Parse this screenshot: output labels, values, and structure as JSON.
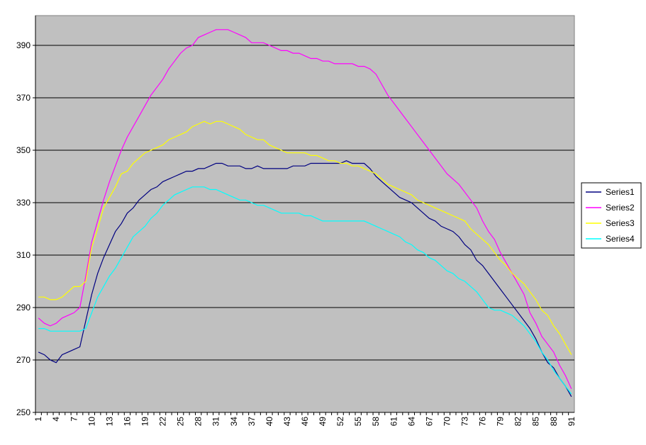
{
  "chart_data": {
    "type": "line",
    "categories": [
      1,
      null,
      null,
      4,
      null,
      null,
      7,
      null,
      null,
      10,
      null,
      null,
      13,
      null,
      null,
      16,
      null,
      null,
      19,
      null,
      null,
      22,
      null,
      null,
      25,
      null,
      null,
      28,
      null,
      null,
      31,
      null,
      null,
      34,
      null,
      null,
      37,
      null,
      null,
      40,
      null,
      null,
      43,
      null,
      null,
      46,
      null,
      null,
      49,
      null,
      null,
      52,
      null,
      null,
      55,
      null,
      null,
      58,
      null,
      null,
      61,
      null,
      null,
      64,
      null,
      null,
      67,
      null,
      null,
      70,
      null,
      null,
      73,
      null,
      null,
      76,
      null,
      null,
      79,
      null,
      null,
      82,
      null,
      null,
      85,
      null,
      null,
      88,
      null,
      null,
      91
    ],
    "ylim": [
      250,
      400
    ],
    "yticks": [
      250,
      270,
      290,
      310,
      330,
      350,
      370,
      390
    ],
    "grid": true,
    "legend": "right",
    "background": "#c0c0c0",
    "series": [
      {
        "name": "Series1",
        "color": "#000080",
        "values": [
          273,
          272,
          270,
          269,
          272,
          273,
          274,
          275,
          285,
          295,
          303,
          309,
          314,
          319,
          322,
          326,
          328,
          331,
          333,
          335,
          336,
          338,
          339,
          340,
          341,
          342,
          342,
          343,
          343,
          344,
          345,
          345,
          344,
          344,
          344,
          343,
          343,
          344,
          343,
          343,
          343,
          343,
          343,
          344,
          344,
          344,
          345,
          345,
          345,
          345,
          345,
          345,
          346,
          345,
          345,
          345,
          343,
          340,
          338,
          336,
          334,
          332,
          331,
          330,
          328,
          326,
          324,
          323,
          321,
          320,
          319,
          317,
          314,
          312,
          308,
          306,
          303,
          300,
          297,
          294,
          291,
          288,
          285,
          282,
          278,
          273,
          269,
          267,
          263,
          260,
          256
        ]
      },
      {
        "name": "Series2",
        "color": "#ff00ff",
        "values": [
          286,
          284,
          283,
          284,
          286,
          287,
          288,
          290,
          302,
          315,
          323,
          331,
          338,
          344,
          350,
          355,
          359,
          363,
          367,
          371,
          374,
          377,
          381,
          384,
          387,
          389,
          390,
          393,
          394,
          395,
          396,
          396,
          396,
          395,
          394,
          393,
          391,
          391,
          391,
          390,
          389,
          388,
          388,
          387,
          387,
          386,
          385,
          385,
          384,
          384,
          383,
          383,
          383,
          383,
          382,
          382,
          381,
          379,
          375,
          371,
          368,
          365,
          362,
          359,
          356,
          353,
          350,
          347,
          344,
          341,
          339,
          337,
          334,
          331,
          328,
          323,
          319,
          316,
          311,
          307,
          303,
          299,
          295,
          288,
          284,
          279,
          276,
          273,
          268,
          264,
          259
        ]
      },
      {
        "name": "Series3",
        "color": "#ffff00",
        "values": [
          294,
          294,
          293,
          293,
          294,
          296,
          298,
          298,
          300,
          313,
          320,
          328,
          332,
          336,
          341,
          342,
          345,
          347,
          349,
          350,
          351,
          352,
          354,
          355,
          356,
          357,
          359,
          360,
          361,
          360,
          361,
          361,
          360,
          359,
          358,
          356,
          355,
          354,
          354,
          352,
          351,
          350,
          349,
          349,
          349,
          349,
          348,
          348,
          347,
          346,
          346,
          345,
          345,
          344,
          344,
          343,
          342,
          341,
          339,
          337,
          336,
          335,
          334,
          333,
          331,
          330,
          329,
          328,
          327,
          326,
          325,
          324,
          323,
          320,
          318,
          316,
          314,
          311,
          308,
          306,
          303,
          301,
          299,
          296,
          293,
          289,
          287,
          283,
          280,
          276,
          272
        ]
      },
      {
        "name": "Series4",
        "color": "#00ffff",
        "values": [
          282,
          282,
          281,
          281,
          281,
          281,
          281,
          281,
          282,
          288,
          294,
          298,
          302,
          305,
          309,
          313,
          317,
          319,
          321,
          324,
          326,
          329,
          331,
          333,
          334,
          335,
          336,
          336,
          336,
          335,
          335,
          334,
          333,
          332,
          331,
          331,
          330,
          329,
          329,
          328,
          327,
          326,
          326,
          326,
          326,
          325,
          325,
          324,
          323,
          323,
          323,
          323,
          323,
          323,
          323,
          323,
          322,
          321,
          320,
          319,
          318,
          317,
          315,
          314,
          312,
          311,
          309,
          308,
          306,
          304,
          303,
          301,
          300,
          298,
          296,
          293,
          290,
          289,
          289,
          288,
          287,
          285,
          283,
          280,
          277,
          273,
          270,
          266,
          263,
          260,
          257
        ]
      }
    ]
  }
}
